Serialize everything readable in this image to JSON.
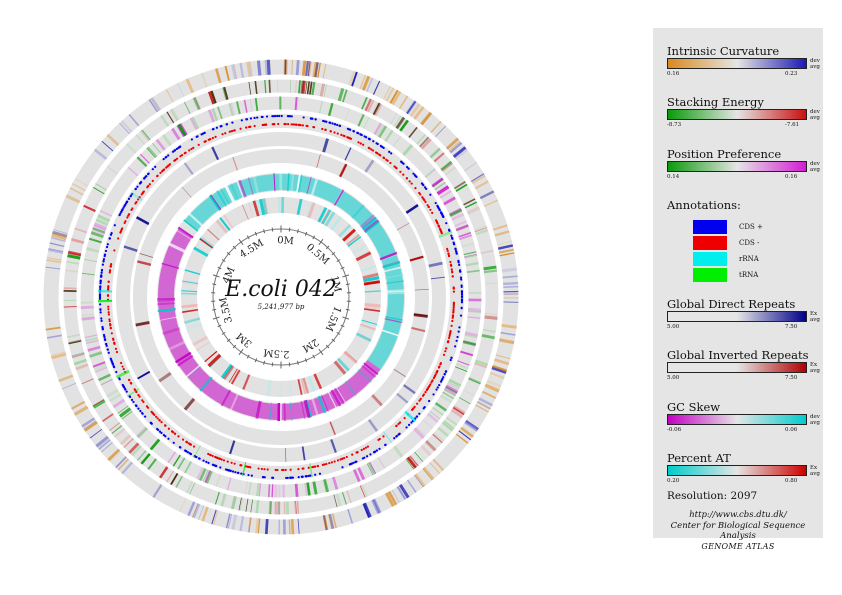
{
  "atlas": {
    "organism": "E.coli 042",
    "genome_length_label": "5,241,977 bp",
    "ruler_labels": [
      "0M",
      "0.5M",
      "1M",
      "1.5M",
      "2M",
      "2.5M",
      "3M",
      "3.5M",
      "4M",
      "4.5M"
    ]
  },
  "legend": {
    "intrinsic_curvature": {
      "title": "Intrinsic Curvature",
      "min": "0.16",
      "max": "0.23",
      "caption_top": "dev",
      "caption_bottom": "avg",
      "colors": [
        "#d98a1e",
        "#1a1ab5"
      ]
    },
    "stacking_energy": {
      "title": "Stacking Energy",
      "min": "-8.73",
      "max": "-7.61",
      "caption_top": "dev",
      "caption_bottom": "avg",
      "colors": [
        "#0a9a0a",
        "#c81010"
      ]
    },
    "position_preference": {
      "title": "Position Preference",
      "min": "0.14",
      "max": "0.16",
      "caption_top": "dev",
      "caption_bottom": "avg",
      "colors": [
        "#0a9a0a",
        "#d21ed2"
      ]
    },
    "annotations": {
      "title": "Annotations:",
      "items": [
        {
          "label": "CDS +",
          "color": "#0000ee"
        },
        {
          "label": "CDS -",
          "color": "#ee0000"
        },
        {
          "label": "rRNA",
          "color": "#00eeee"
        },
        {
          "label": "tRNA",
          "color": "#00ee00"
        }
      ]
    },
    "global_direct_repeats": {
      "title": "Global Direct Repeats",
      "min": "5.00",
      "max": "7.50",
      "caption_top": "Ex",
      "caption_bottom": "avg",
      "colors": [
        "#e5e5e5",
        "#00008a"
      ]
    },
    "global_inverted_repeats": {
      "title": "Global Inverted Repeats",
      "min": "5.00",
      "max": "7.50",
      "caption_top": "Ex",
      "caption_bottom": "avg",
      "colors": [
        "#e5e5e5",
        "#b00000"
      ]
    },
    "gc_skew": {
      "title": "GC Skew",
      "min": "-0.06",
      "max": "0.06",
      "caption_top": "dev",
      "caption_bottom": "avg",
      "colors": [
        "#c400c4",
        "#00cccc"
      ]
    },
    "percent_at": {
      "title": "Percent AT",
      "min": "0.20",
      "max": "0.80",
      "caption_top": "Ex",
      "caption_bottom": "avg",
      "colors": [
        "#00cccc",
        "#cc0000"
      ]
    },
    "resolution": "Resolution: 2097",
    "url": "http://www.cbs.dtu.dk/",
    "organization": "Center for Biological Sequence Analysis"
  },
  "brand": "GENOME ATLAS"
}
